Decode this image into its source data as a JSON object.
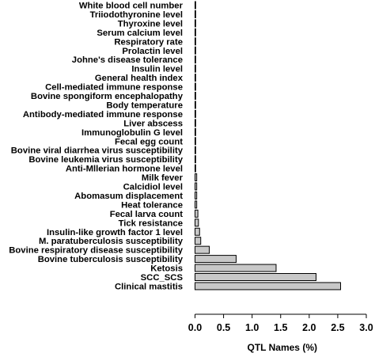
{
  "chart_data": {
    "type": "bar",
    "orientation": "horizontal",
    "xlabel": "QTL Names (%)",
    "ylabel": "",
    "xlim": [
      0.0,
      3.0
    ],
    "xticks": [
      "0.0",
      "0.5",
      "1.0",
      "1.5",
      "2.0",
      "2.5",
      "3.0"
    ],
    "grid": false,
    "colors": {
      "bar_fill": "#c8c8c8",
      "bar_stroke": "#000000"
    },
    "categories": [
      "White blood cell number",
      "Triiodothyronine level",
      "Thyroxine level",
      "Serum calcium level",
      "Respiratory rate",
      "Prolactin level",
      "Johne's disease tolerance",
      "Insulin level",
      "General health index",
      "Cell-mediated immune response",
      "Bovine spongiform encephalopathy",
      "Body temperature",
      "Antibody-mediated immune response",
      "Liver abscess",
      "Immunoglobulin G level",
      "Fecal egg count",
      "Bovine viral diarrhea virus susceptibility",
      "Bovine leukemia virus susceptibility",
      "Anti-Mllerian hormone level",
      "Milk fever",
      "Calcidiol level",
      "Abomasum displacement",
      "Heat tolerance",
      "Fecal larva count",
      "Tick resistance",
      "Insulin-like growth factor 1 level",
      "M. paratuberculosis susceptibility",
      "Bovine respiratory disease susceptibility",
      "Bovine tuberculosis susceptibility",
      "Ketosis",
      "SCC_SCS",
      "Clinical mastitis"
    ],
    "values": [
      0.003,
      0.003,
      0.003,
      0.003,
      0.003,
      0.003,
      0.003,
      0.003,
      0.003,
      0.003,
      0.003,
      0.003,
      0.003,
      0.01,
      0.01,
      0.01,
      0.01,
      0.01,
      0.01,
      0.03,
      0.03,
      0.03,
      0.03,
      0.05,
      0.06,
      0.08,
      0.1,
      0.25,
      0.72,
      1.42,
      2.12,
      2.55
    ]
  }
}
